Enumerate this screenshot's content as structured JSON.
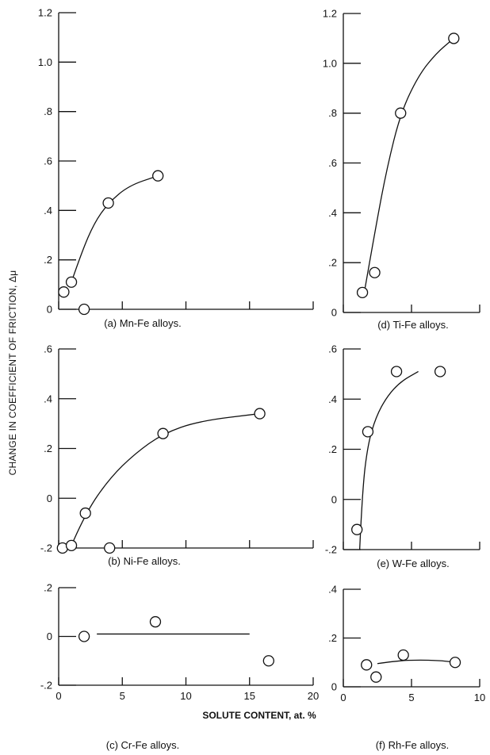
{
  "y_axis_label": "CHANGE IN COEFFICIENT OF FRICTION, Δμ",
  "x_axis_label": "SOLUTE CONTENT, at. %",
  "chart_data": [
    {
      "type": "scatter",
      "caption": "(a) Mn-Fe alloys.",
      "ylim": [
        0,
        1.2
      ],
      "yticks": [
        0,
        0.2,
        0.4,
        0.6,
        0.8,
        1.0,
        1.2
      ],
      "ytick_labels": [
        "0",
        ".2",
        ".4",
        ".6",
        ".8",
        "1.0",
        "1.2"
      ],
      "xlim": [
        0,
        20
      ],
      "xticks": [
        0,
        5,
        10,
        15,
        20
      ],
      "points": [
        {
          "x": 0.4,
          "y": 0.07
        },
        {
          "x": 1.0,
          "y": 0.11
        },
        {
          "x": 2.0,
          "y": 0.0
        },
        {
          "x": 3.9,
          "y": 0.43
        },
        {
          "x": 7.8,
          "y": 0.54
        }
      ],
      "curve": [
        [
          1.0,
          0.11
        ],
        [
          1.8,
          0.23
        ],
        [
          2.8,
          0.35
        ],
        [
          3.9,
          0.43
        ],
        [
          5.5,
          0.5
        ],
        [
          7.8,
          0.54
        ]
      ]
    },
    {
      "type": "scatter",
      "caption": "(b) Ni-Fe alloys.",
      "ylim": [
        -0.2,
        0.6
      ],
      "yticks": [
        -0.2,
        0,
        0.2,
        0.4,
        0.6
      ],
      "ytick_labels": [
        "-.2",
        "0",
        ".2",
        ".4",
        ".6"
      ],
      "xlim": [
        0,
        20
      ],
      "xticks": [
        0,
        5,
        10,
        15,
        20
      ],
      "points": [
        {
          "x": 0.3,
          "y": -0.2
        },
        {
          "x": 1.0,
          "y": -0.19
        },
        {
          "x": 2.1,
          "y": -0.06
        },
        {
          "x": 4.0,
          "y": -0.2
        },
        {
          "x": 8.2,
          "y": 0.26
        },
        {
          "x": 15.8,
          "y": 0.34
        }
      ],
      "curve": [
        [
          1.0,
          -0.19
        ],
        [
          2.1,
          -0.06
        ],
        [
          4.0,
          0.08
        ],
        [
          6.0,
          0.18
        ],
        [
          8.2,
          0.26
        ],
        [
          11.0,
          0.31
        ],
        [
          15.8,
          0.34
        ]
      ]
    },
    {
      "type": "scatter",
      "caption": "(c) Cr-Fe alloys.",
      "ylim": [
        -0.2,
        0.2
      ],
      "yticks": [
        -0.2,
        0,
        0.2
      ],
      "ytick_labels": [
        "-.2",
        "0",
        ".2"
      ],
      "xlim": [
        0,
        20
      ],
      "xticks": [
        0,
        5,
        10,
        15,
        20
      ],
      "xtick_labels": [
        "0",
        "5",
        "10",
        "15",
        "20"
      ],
      "points": [
        {
          "x": 2.0,
          "y": 0.0
        },
        {
          "x": 7.6,
          "y": 0.06
        },
        {
          "x": 16.5,
          "y": -0.1
        }
      ],
      "curve": [
        [
          3.0,
          0.01
        ],
        [
          15.0,
          0.01
        ]
      ]
    },
    {
      "type": "scatter",
      "caption": "(d) Ti-Fe alloys.",
      "ylim": [
        0,
        1.2
      ],
      "yticks": [
        0,
        0.2,
        0.4,
        0.6,
        0.8,
        1.0,
        1.2
      ],
      "ytick_labels": [
        "0",
        ".2",
        ".4",
        ".6",
        ".8",
        "1.0",
        "1.2"
      ],
      "xlim": [
        0,
        10
      ],
      "xticks": [
        0,
        5,
        10
      ],
      "points": [
        {
          "x": 1.4,
          "y": 0.08
        },
        {
          "x": 2.3,
          "y": 0.16
        },
        {
          "x": 4.2,
          "y": 0.8
        },
        {
          "x": 8.1,
          "y": 1.1
        }
      ],
      "curve": [
        [
          1.6,
          0.1
        ],
        [
          2.4,
          0.35
        ],
        [
          3.2,
          0.58
        ],
        [
          4.2,
          0.8
        ],
        [
          5.5,
          0.95
        ],
        [
          6.8,
          1.04
        ],
        [
          8.1,
          1.1
        ]
      ]
    },
    {
      "type": "scatter",
      "caption": "(e) W-Fe alloys.",
      "ylim": [
        -0.2,
        0.6
      ],
      "yticks": [
        -0.2,
        0,
        0.2,
        0.4,
        0.6
      ],
      "ytick_labels": [
        "-.2",
        "0",
        ".2",
        ".4",
        ".6"
      ],
      "xlim": [
        0,
        10
      ],
      "xticks": [
        0,
        5,
        10
      ],
      "points": [
        {
          "x": 1.0,
          "y": -0.12
        },
        {
          "x": 1.8,
          "y": 0.27
        },
        {
          "x": 3.9,
          "y": 0.51
        },
        {
          "x": 7.1,
          "y": 0.51
        }
      ],
      "curve": [
        [
          1.2,
          -0.2
        ],
        [
          1.4,
          0.04
        ],
        [
          1.8,
          0.22
        ],
        [
          2.4,
          0.33
        ],
        [
          3.2,
          0.41
        ],
        [
          4.2,
          0.47
        ],
        [
          5.5,
          0.51
        ]
      ]
    },
    {
      "type": "scatter",
      "caption": "(f) Rh-Fe alloys.",
      "ylim": [
        0,
        0.4
      ],
      "yticks": [
        0,
        0.2,
        0.4
      ],
      "ytick_labels": [
        "0",
        ".2",
        ".4"
      ],
      "xlim": [
        0,
        10
      ],
      "xticks": [
        0,
        5,
        10
      ],
      "xtick_labels": [
        "0",
        "5",
        "10"
      ],
      "points": [
        {
          "x": 1.7,
          "y": 0.09
        },
        {
          "x": 2.4,
          "y": 0.04
        },
        {
          "x": 4.4,
          "y": 0.13
        },
        {
          "x": 8.2,
          "y": 0.1
        }
      ],
      "curve": [
        [
          2.5,
          0.095
        ],
        [
          4.0,
          0.107
        ],
        [
          5.5,
          0.11
        ],
        [
          7.0,
          0.108
        ],
        [
          8.0,
          0.102
        ]
      ]
    }
  ]
}
